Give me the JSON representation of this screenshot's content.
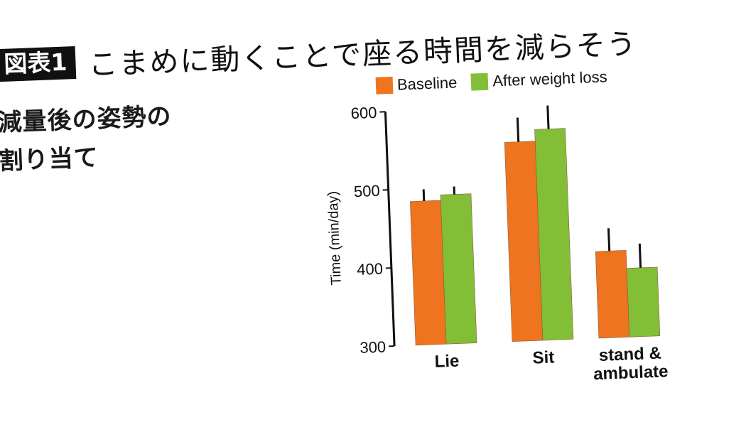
{
  "header": {
    "figure_badge": "図表1",
    "title": "こまめに動くことで座る時間を減らそう",
    "subtitle_lines": [
      "減量後の姿勢の",
      "割り当て"
    ]
  },
  "legend": [
    {
      "label": "Baseline",
      "color": "#ee7420"
    },
    {
      "label": "After weight loss",
      "color": "#82bf37"
    }
  ],
  "colors": {
    "baseline": "#ee7420",
    "after": "#82bf37",
    "axis": "#111111",
    "error_bar": "#111111"
  },
  "chart_data": {
    "type": "bar",
    "title": "",
    "xlabel": "",
    "ylabel": "Time (min/day)",
    "ylim": [
      300,
      600
    ],
    "yticks": [
      300,
      400,
      500,
      600
    ],
    "grid": false,
    "legend_position": "top",
    "categories": [
      "Lie",
      "Sit",
      "stand & ambulate"
    ],
    "category_display_lines": [
      [
        "Lie"
      ],
      [
        "Sit"
      ],
      [
        "stand &",
        "ambulate"
      ]
    ],
    "series": [
      {
        "name": "Baseline",
        "color": "#ee7420",
        "values": [
          484,
          555,
          411
        ],
        "error_upper": [
          15,
          31,
          29
        ]
      },
      {
        "name": "After weight loss",
        "color": "#82bf37",
        "values": [
          491,
          570,
          388
        ],
        "error_upper": [
          10,
          30,
          31
        ]
      }
    ]
  }
}
